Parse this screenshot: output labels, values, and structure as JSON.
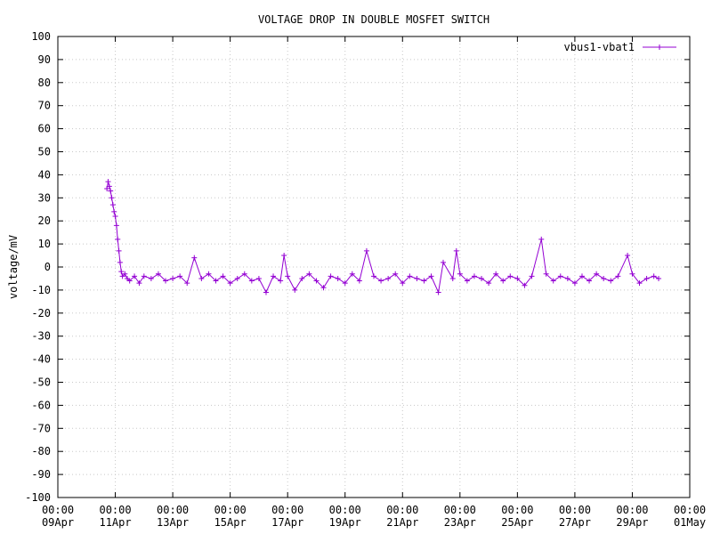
{
  "chart_data": {
    "type": "line",
    "title": "VOLTAGE DROP IN DOUBLE MOSFET SWITCH",
    "xlabel": "",
    "ylabel": "voltage/mV",
    "ylim": [
      -100,
      100
    ],
    "yticks": [
      100,
      90,
      80,
      70,
      60,
      50,
      40,
      30,
      20,
      10,
      0,
      -10,
      -20,
      -30,
      -40,
      -50,
      -60,
      -70,
      -80,
      -90,
      -100
    ],
    "xlim": [
      "2017-04-09 00:00",
      "2017-05-01 00:00"
    ],
    "xticks": [
      {
        "date": "2017-04-09",
        "time": "00:00",
        "label": "09Apr"
      },
      {
        "date": "2017-04-11",
        "time": "00:00",
        "label": "11Apr"
      },
      {
        "date": "2017-04-13",
        "time": "00:00",
        "label": "13Apr"
      },
      {
        "date": "2017-04-15",
        "time": "00:00",
        "label": "15Apr"
      },
      {
        "date": "2017-04-17",
        "time": "00:00",
        "label": "17Apr"
      },
      {
        "date": "2017-04-19",
        "time": "00:00",
        "label": "19Apr"
      },
      {
        "date": "2017-04-21",
        "time": "00:00",
        "label": "21Apr"
      },
      {
        "date": "2017-04-23",
        "time": "00:00",
        "label": "23Apr"
      },
      {
        "date": "2017-04-25",
        "time": "00:00",
        "label": "25Apr"
      },
      {
        "date": "2017-04-27",
        "time": "00:00",
        "label": "27Apr"
      },
      {
        "date": "2017-04-29",
        "time": "00:00",
        "label": "29Apr"
      },
      {
        "date": "2017-05-01",
        "time": "00:00",
        "label": "01May"
      }
    ],
    "grid": true,
    "legend_position": "top-right",
    "series": [
      {
        "name": "vbus1-vbat1",
        "color": "#9400d3",
        "marker": "plus",
        "points": [
          [
            "2017-04-10 17:00",
            34
          ],
          [
            "2017-04-10 18:00",
            37
          ],
          [
            "2017-04-10 19:00",
            35
          ],
          [
            "2017-04-10 20:00",
            33
          ],
          [
            "2017-04-10 21:00",
            30
          ],
          [
            "2017-04-10 22:00",
            27
          ],
          [
            "2017-04-10 23:00",
            24
          ],
          [
            "2017-04-11 00:00",
            22
          ],
          [
            "2017-04-11 01:00",
            18
          ],
          [
            "2017-04-11 02:00",
            12
          ],
          [
            "2017-04-11 03:00",
            7
          ],
          [
            "2017-04-11 04:00",
            2
          ],
          [
            "2017-04-11 05:00",
            -2
          ],
          [
            "2017-04-11 06:00",
            -4
          ],
          [
            "2017-04-11 08:00",
            -3
          ],
          [
            "2017-04-11 10:00",
            -5
          ],
          [
            "2017-04-11 12:00",
            -6
          ],
          [
            "2017-04-11 16:00",
            -4
          ],
          [
            "2017-04-11 20:00",
            -7
          ],
          [
            "2017-04-12 00:00",
            -4
          ],
          [
            "2017-04-12 06:00",
            -5
          ],
          [
            "2017-04-12 12:00",
            -3
          ],
          [
            "2017-04-12 18:00",
            -6
          ],
          [
            "2017-04-13 00:00",
            -5
          ],
          [
            "2017-04-13 06:00",
            -4
          ],
          [
            "2017-04-13 12:00",
            -7
          ],
          [
            "2017-04-13 18:00",
            4
          ],
          [
            "2017-04-14 00:00",
            -5
          ],
          [
            "2017-04-14 06:00",
            -3
          ],
          [
            "2017-04-14 12:00",
            -6
          ],
          [
            "2017-04-14 18:00",
            -4
          ],
          [
            "2017-04-15 00:00",
            -7
          ],
          [
            "2017-04-15 06:00",
            -5
          ],
          [
            "2017-04-15 12:00",
            -3
          ],
          [
            "2017-04-15 18:00",
            -6
          ],
          [
            "2017-04-16 00:00",
            -5
          ],
          [
            "2017-04-16 06:00",
            -11
          ],
          [
            "2017-04-16 12:00",
            -4
          ],
          [
            "2017-04-16 18:00",
            -6
          ],
          [
            "2017-04-16 21:00",
            5
          ],
          [
            "2017-04-17 00:00",
            -4
          ],
          [
            "2017-04-17 06:00",
            -10
          ],
          [
            "2017-04-17 12:00",
            -5
          ],
          [
            "2017-04-17 18:00",
            -3
          ],
          [
            "2017-04-18 00:00",
            -6
          ],
          [
            "2017-04-18 06:00",
            -9
          ],
          [
            "2017-04-18 12:00",
            -4
          ],
          [
            "2017-04-18 18:00",
            -5
          ],
          [
            "2017-04-19 00:00",
            -7
          ],
          [
            "2017-04-19 06:00",
            -3
          ],
          [
            "2017-04-19 12:00",
            -6
          ],
          [
            "2017-04-19 18:00",
            7
          ],
          [
            "2017-04-20 00:00",
            -4
          ],
          [
            "2017-04-20 06:00",
            -6
          ],
          [
            "2017-04-20 12:00",
            -5
          ],
          [
            "2017-04-20 18:00",
            -3
          ],
          [
            "2017-04-21 00:00",
            -7
          ],
          [
            "2017-04-21 06:00",
            -4
          ],
          [
            "2017-04-21 12:00",
            -5
          ],
          [
            "2017-04-21 18:00",
            -6
          ],
          [
            "2017-04-22 00:00",
            -4
          ],
          [
            "2017-04-22 06:00",
            -11
          ],
          [
            "2017-04-22 10:00",
            2
          ],
          [
            "2017-04-22 18:00",
            -5
          ],
          [
            "2017-04-22 21:00",
            7
          ],
          [
            "2017-04-23 00:00",
            -3
          ],
          [
            "2017-04-23 06:00",
            -6
          ],
          [
            "2017-04-23 12:00",
            -4
          ],
          [
            "2017-04-23 18:00",
            -5
          ],
          [
            "2017-04-24 00:00",
            -7
          ],
          [
            "2017-04-24 06:00",
            -3
          ],
          [
            "2017-04-24 12:00",
            -6
          ],
          [
            "2017-04-24 18:00",
            -4
          ],
          [
            "2017-04-25 00:00",
            -5
          ],
          [
            "2017-04-25 06:00",
            -8
          ],
          [
            "2017-04-25 12:00",
            -4
          ],
          [
            "2017-04-25 20:00",
            12
          ],
          [
            "2017-04-26 00:00",
            -3
          ],
          [
            "2017-04-26 06:00",
            -6
          ],
          [
            "2017-04-26 12:00",
            -4
          ],
          [
            "2017-04-26 18:00",
            -5
          ],
          [
            "2017-04-27 00:00",
            -7
          ],
          [
            "2017-04-27 06:00",
            -4
          ],
          [
            "2017-04-27 12:00",
            -6
          ],
          [
            "2017-04-27 18:00",
            -3
          ],
          [
            "2017-04-28 00:00",
            -5
          ],
          [
            "2017-04-28 06:00",
            -6
          ],
          [
            "2017-04-28 12:00",
            -4
          ],
          [
            "2017-04-28 20:00",
            5
          ],
          [
            "2017-04-29 00:00",
            -3
          ],
          [
            "2017-04-29 06:00",
            -7
          ],
          [
            "2017-04-29 12:00",
            -5
          ],
          [
            "2017-04-29 18:00",
            -4
          ],
          [
            "2017-04-29 22:00",
            -5
          ]
        ]
      }
    ]
  }
}
